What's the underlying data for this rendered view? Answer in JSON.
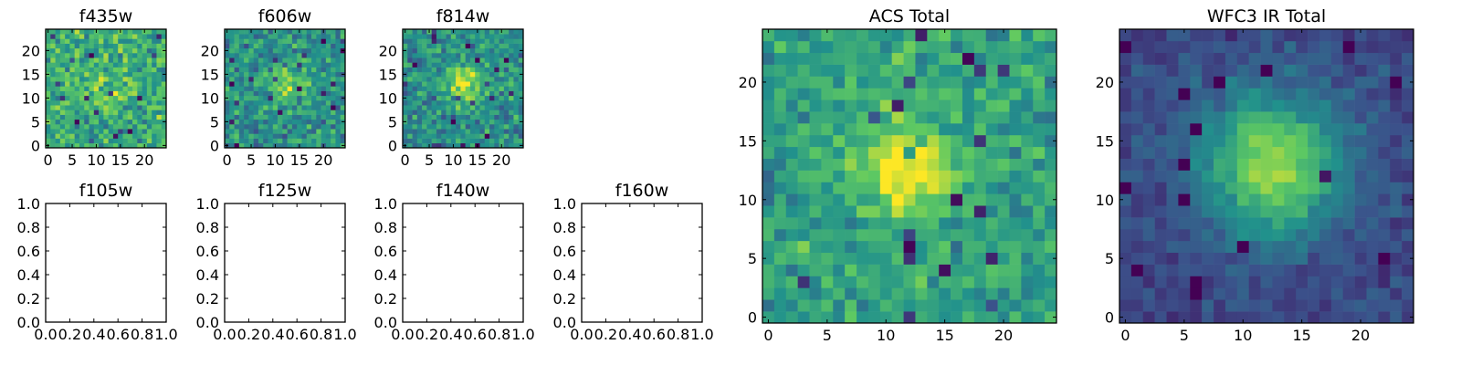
{
  "figure": {
    "colormap": [
      "#440154",
      "#3b528b",
      "#21918c",
      "#5ec962",
      "#fde725"
    ],
    "panels": [
      {
        "title": "f435w",
        "type": "heatmap",
        "grid": [
          25,
          25
        ],
        "xticks": [
          "0",
          "5",
          "10",
          "15",
          "20"
        ],
        "yticks": [
          "0",
          "5",
          "10",
          "15",
          "20"
        ],
        "seed": 11,
        "source": {
          "amp": 0.12,
          "sigma": 3.0,
          "cx": 12,
          "cy": 12
        },
        "base": 0.62,
        "noise": 0.34
      },
      {
        "title": "f606w",
        "type": "heatmap",
        "grid": [
          25,
          25
        ],
        "xticks": [
          "0",
          "5",
          "10",
          "15",
          "20"
        ],
        "yticks": [
          "0",
          "5",
          "10",
          "15",
          "20"
        ],
        "seed": 29,
        "source": {
          "amp": 0.35,
          "sigma": 2.6,
          "cx": 12.5,
          "cy": 13
        },
        "base": 0.5,
        "noise": 0.34
      },
      {
        "title": "f814w",
        "type": "heatmap",
        "grid": [
          25,
          25
        ],
        "xticks": [
          "0",
          "5",
          "10",
          "15",
          "20"
        ],
        "yticks": [
          "0",
          "5",
          "10",
          "15",
          "20"
        ],
        "seed": 47,
        "source": {
          "amp": 0.4,
          "sigma": 2.6,
          "cx": 12.5,
          "cy": 13
        },
        "base": 0.5,
        "noise": 0.32
      },
      {
        "title": "f105w",
        "type": "empty",
        "xticks": [
          "0.0",
          "0.2",
          "0.4",
          "0.6",
          "0.8",
          "1.0"
        ],
        "yticks": [
          "0.0",
          "0.2",
          "0.4",
          "0.6",
          "0.8",
          "1.0"
        ]
      },
      {
        "title": "f125w",
        "type": "empty",
        "xticks": [
          "0.0",
          "0.2",
          "0.4",
          "0.6",
          "0.8",
          "1.0"
        ],
        "yticks": [
          "0.0",
          "0.2",
          "0.4",
          "0.6",
          "0.8",
          "1.0"
        ]
      },
      {
        "title": "f140w",
        "type": "empty",
        "xticks": [
          "0.0",
          "0.2",
          "0.4",
          "0.6",
          "0.8",
          "1.0"
        ],
        "yticks": [
          "0.0",
          "0.2",
          "0.4",
          "0.6",
          "0.8",
          "1.0"
        ]
      },
      {
        "title": "f160w",
        "type": "empty",
        "xticks": [
          "0.0",
          "0.2",
          "0.4",
          "0.6",
          "0.8",
          "1.0"
        ],
        "yticks": [
          "0.0",
          "0.2",
          "0.4",
          "0.6",
          "0.8",
          "1.0"
        ]
      },
      {
        "title": "ACS Total",
        "type": "heatmap",
        "grid": [
          25,
          25
        ],
        "xticks": [
          "0",
          "5",
          "10",
          "15",
          "20"
        ],
        "yticks": [
          "0",
          "5",
          "10",
          "15",
          "20"
        ],
        "seed": 83,
        "source": {
          "amp": 0.42,
          "sigma": 3.0,
          "cx": 12,
          "cy": 12.5
        },
        "base": 0.56,
        "noise": 0.28
      },
      {
        "title": "WFC3 IR Total",
        "type": "heatmap",
        "grid": [
          25,
          25
        ],
        "xticks": [
          "0",
          "5",
          "10",
          "15",
          "20"
        ],
        "yticks": [
          "0",
          "5",
          "10",
          "15",
          "20"
        ],
        "seed": 101,
        "source": {
          "amp": 0.62,
          "sigma": 4.2,
          "cx": 12.5,
          "cy": 13
        },
        "base": 0.22,
        "noise": 0.14
      }
    ]
  }
}
